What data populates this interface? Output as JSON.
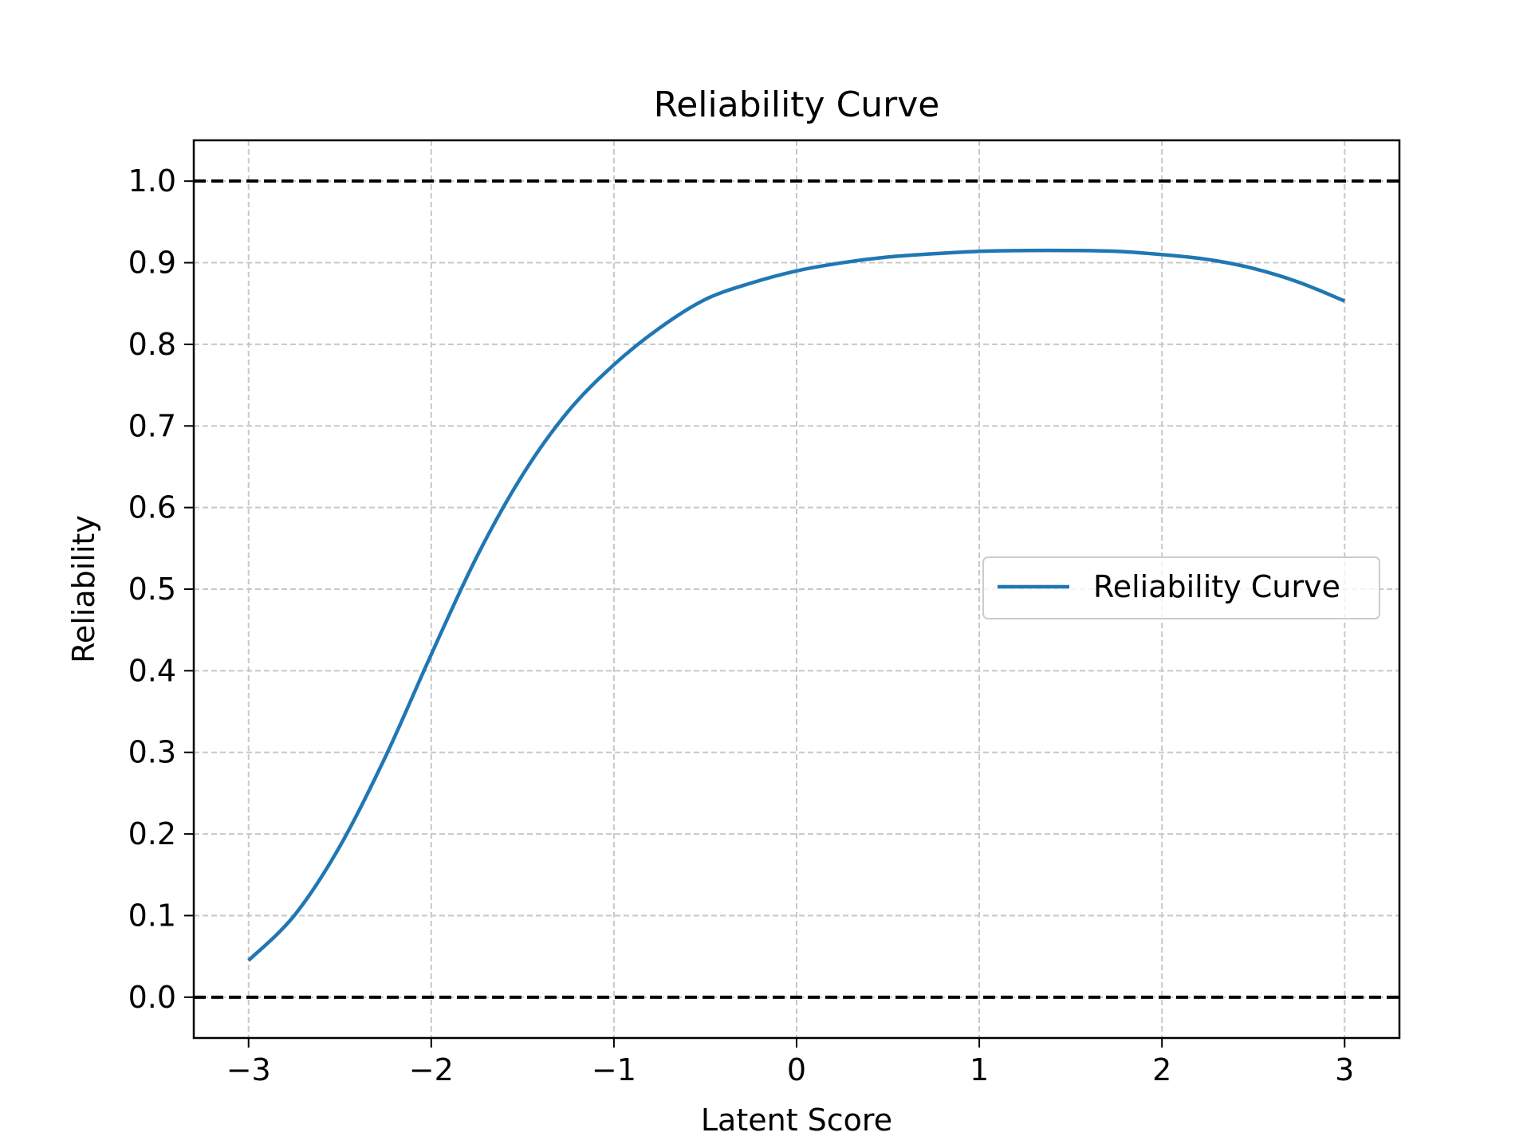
{
  "chart_data": {
    "type": "line",
    "title": "Reliability Curve",
    "xlabel": "Latent Score",
    "ylabel": "Reliability",
    "xlim": [
      -3.3,
      3.3
    ],
    "ylim": [
      -0.05,
      1.05
    ],
    "xticks": [
      -3,
      -2,
      -1,
      0,
      1,
      2,
      3
    ],
    "xtick_labels": [
      "−3",
      "−2",
      "−1",
      "0",
      "1",
      "2",
      "3"
    ],
    "yticks": [
      0.0,
      0.1,
      0.2,
      0.3,
      0.4,
      0.5,
      0.6,
      0.7,
      0.8,
      0.9,
      1.0
    ],
    "ytick_labels": [
      "0.0",
      "0.1",
      "0.2",
      "0.3",
      "0.4",
      "0.5",
      "0.6",
      "0.7",
      "0.8",
      "0.9",
      "1.0"
    ],
    "grid": true,
    "legend": {
      "position": "center-right",
      "entries": [
        "Reliability Curve"
      ]
    },
    "reference_lines": [
      {
        "y": 1.0,
        "style": "dashed",
        "color": "#000000"
      },
      {
        "y": 0.0,
        "style": "dashed",
        "color": "#000000"
      }
    ],
    "series": [
      {
        "name": "Reliability Curve",
        "color": "#1f77b4",
        "x": [
          -3.0,
          -2.75,
          -2.5,
          -2.25,
          -2.0,
          -1.75,
          -1.5,
          -1.25,
          -1.0,
          -0.75,
          -0.5,
          -0.25,
          0.0,
          0.25,
          0.5,
          0.75,
          1.0,
          1.25,
          1.5,
          1.75,
          2.0,
          2.25,
          2.5,
          2.75,
          3.0
        ],
        "y": [
          0.045,
          0.1,
          0.185,
          0.295,
          0.42,
          0.54,
          0.64,
          0.718,
          0.775,
          0.82,
          0.855,
          0.875,
          0.89,
          0.9,
          0.907,
          0.911,
          0.914,
          0.915,
          0.915,
          0.914,
          0.91,
          0.904,
          0.893,
          0.876,
          0.853
        ]
      }
    ]
  }
}
